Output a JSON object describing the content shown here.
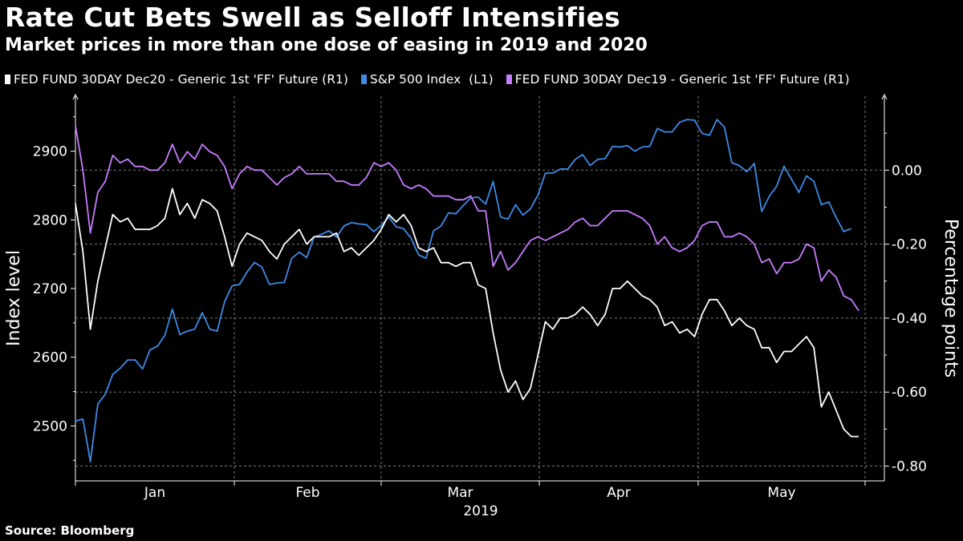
{
  "chart_data": {
    "type": "line",
    "title": "Rate Cut Bets Swell as Selloff Intensifies",
    "subtitle": "Market prices in more than one dose of easing in 2019 and 2020",
    "source": "Source: Bloomberg",
    "ylabel_left": "Index level",
    "ylabel_right": "Percentage points",
    "xlabel": "2019",
    "x_ticks": [
      "Jan",
      "Feb",
      "Mar",
      "Apr",
      "May"
    ],
    "left_axis": {
      "ylim": [
        2420,
        2980
      ],
      "ticks": [
        "2500",
        "2600",
        "2700",
        "2800",
        "2900"
      ]
    },
    "right_axis": {
      "ylim": [
        -0.84,
        0.2
      ],
      "ticks": [
        "0.00",
        "-0.20",
        "-0.40",
        "-0.60",
        "-0.80"
      ]
    },
    "grid": true,
    "series": [
      {
        "name": "FED FUND 30DAY Dec20 - Generic 1st 'FF' Future (R1)",
        "axis": "right",
        "color": "#ffffff",
        "values": [
          -0.09,
          -0.22,
          -0.43,
          -0.3,
          -0.21,
          -0.12,
          -0.14,
          -0.13,
          -0.16,
          -0.16,
          -0.16,
          -0.15,
          -0.13,
          -0.05,
          -0.12,
          -0.09,
          -0.13,
          -0.08,
          -0.09,
          -0.11,
          -0.18,
          -0.26,
          -0.2,
          -0.17,
          -0.18,
          -0.19,
          -0.22,
          -0.24,
          -0.2,
          -0.18,
          -0.16,
          -0.2,
          -0.18,
          -0.18,
          -0.18,
          -0.17,
          -0.22,
          -0.21,
          -0.23,
          -0.21,
          -0.19,
          -0.16,
          -0.12,
          -0.14,
          -0.12,
          -0.15,
          -0.21,
          -0.22,
          -0.21,
          -0.25,
          -0.25,
          -0.26,
          -0.25,
          -0.25,
          -0.31,
          -0.32,
          -0.44,
          -0.54,
          -0.6,
          -0.57,
          -0.62,
          -0.59,
          -0.5,
          -0.41,
          -0.43,
          -0.4,
          -0.4,
          -0.39,
          -0.37,
          -0.39,
          -0.42,
          -0.39,
          -0.32,
          -0.32,
          -0.3,
          -0.32,
          -0.34,
          -0.35,
          -0.37,
          -0.42,
          -0.41,
          -0.44,
          -0.43,
          -0.45,
          -0.39,
          -0.35,
          -0.35,
          -0.38,
          -0.42,
          -0.4,
          -0.42,
          -0.43,
          -0.48,
          -0.48,
          -0.52,
          -0.49,
          -0.49,
          -0.47,
          -0.45,
          -0.48,
          -0.64,
          -0.6,
          -0.65,
          -0.7,
          -0.72,
          -0.72
        ]
      },
      {
        "name": "S&P 500 Index  (L1)",
        "axis": "left",
        "color": "#3e8ae6",
        "values": [
          2507,
          2510,
          2448,
          2532,
          2546,
          2575,
          2584,
          2596,
          2596,
          2583,
          2611,
          2616,
          2632,
          2670,
          2633,
          2638,
          2641,
          2665,
          2641,
          2638,
          2681,
          2704,
          2706,
          2724,
          2738,
          2731,
          2706,
          2708,
          2709,
          2744,
          2753,
          2745,
          2775,
          2779,
          2784,
          2775,
          2791,
          2796,
          2794,
          2793,
          2783,
          2792,
          2804,
          2790,
          2787,
          2773,
          2749,
          2744,
          2784,
          2791,
          2810,
          2809,
          2821,
          2832,
          2833,
          2823,
          2856,
          2804,
          2801,
          2822,
          2807,
          2816,
          2836,
          2868,
          2868,
          2874,
          2874,
          2888,
          2895,
          2879,
          2888,
          2889,
          2907,
          2906,
          2908,
          2900,
          2906,
          2907,
          2933,
          2928,
          2928,
          2942,
          2946,
          2945,
          2926,
          2923,
          2946,
          2935,
          2883,
          2879,
          2870,
          2882,
          2812,
          2834,
          2849,
          2878,
          2859,
          2840,
          2864,
          2856,
          2822,
          2826,
          2803,
          2783,
          2787
        ]
      },
      {
        "name": "FED FUND 30DAY Dec19 - Generic 1st 'FF' Future (R1)",
        "axis": "right",
        "color": "#c77dff",
        "values": [
          0.12,
          0.0,
          -0.17,
          -0.06,
          -0.03,
          0.04,
          0.02,
          0.03,
          0.01,
          0.01,
          0.0,
          0.0,
          0.02,
          0.07,
          0.02,
          0.05,
          0.03,
          0.07,
          0.05,
          0.04,
          0.01,
          -0.05,
          -0.01,
          0.01,
          0.0,
          0.0,
          -0.02,
          -0.04,
          -0.02,
          -0.01,
          0.01,
          -0.01,
          -0.01,
          -0.01,
          -0.01,
          -0.03,
          -0.03,
          -0.04,
          -0.04,
          -0.02,
          0.02,
          0.01,
          0.02,
          0.0,
          -0.04,
          -0.05,
          -0.04,
          -0.05,
          -0.07,
          -0.07,
          -0.07,
          -0.08,
          -0.08,
          -0.07,
          -0.11,
          -0.11,
          -0.26,
          -0.22,
          -0.27,
          -0.25,
          -0.22,
          -0.19,
          -0.18,
          -0.19,
          -0.18,
          -0.17,
          -0.16,
          -0.14,
          -0.13,
          -0.15,
          -0.15,
          -0.13,
          -0.11,
          -0.11,
          -0.11,
          -0.12,
          -0.13,
          -0.15,
          -0.2,
          -0.18,
          -0.21,
          -0.22,
          -0.21,
          -0.19,
          -0.15,
          -0.14,
          -0.14,
          -0.18,
          -0.18,
          -0.17,
          -0.18,
          -0.2,
          -0.25,
          -0.24,
          -0.28,
          -0.25,
          -0.25,
          -0.24,
          -0.2,
          -0.21,
          -0.3,
          -0.27,
          -0.29,
          -0.34,
          -0.35,
          -0.38
        ]
      }
    ]
  }
}
